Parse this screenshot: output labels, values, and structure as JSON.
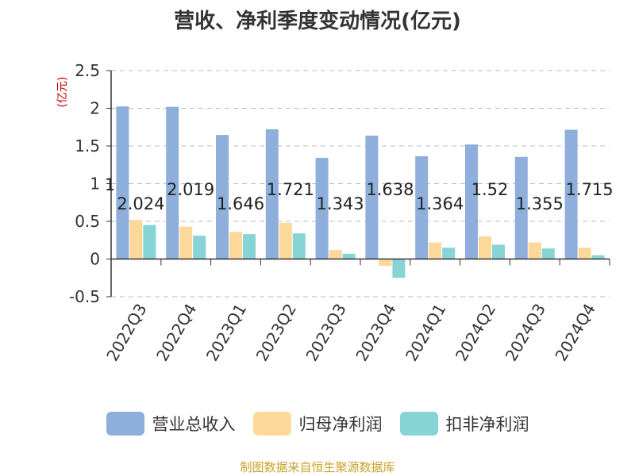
{
  "page": {
    "source_note": "制图数据来自恒生聚源数据库"
  },
  "chart_data": {
    "type": "bar",
    "title": "营收、净利季度变动情况(亿元)",
    "ylabel": "(亿元)",
    "xlabel": "",
    "categories": [
      "2022Q3",
      "2022Q4",
      "2023Q1",
      "2023Q2",
      "2023Q3",
      "2023Q4",
      "2024Q1",
      "2024Q2",
      "2024Q3",
      "2024Q4"
    ],
    "ylim": [
      -0.5,
      2.5
    ],
    "yticks": [
      "2.5",
      "2",
      "1.5",
      "1",
      "0.5",
      "0",
      "-0.5"
    ],
    "ytick_values": [
      2.5,
      2,
      1.5,
      1,
      0.5,
      0,
      -0.5
    ],
    "grid": true,
    "legend_position": "bottom",
    "series": [
      {
        "name": "营业总收入",
        "color": "#8eaedb",
        "values": [
          2.024,
          2.019,
          1.646,
          1.721,
          1.343,
          1.638,
          1.364,
          1.52,
          1.355,
          1.715
        ],
        "labels": [
          "2.024",
          "2.019",
          "1.646",
          "1.721",
          "1.343",
          "1.638",
          "1.364",
          "1.52",
          "1.355",
          "1.715"
        ]
      },
      {
        "name": "归母净利润",
        "color": "#fdd89b",
        "values": [
          0.52,
          0.43,
          0.36,
          0.48,
          0.12,
          -0.09,
          0.22,
          0.3,
          0.22,
          0.15
        ]
      },
      {
        "name": "扣非净利润",
        "color": "#86d4d6",
        "values": [
          0.45,
          0.31,
          0.33,
          0.34,
          0.07,
          -0.25,
          0.15,
          0.19,
          0.14,
          0.05
        ]
      }
    ],
    "annotations": [
      {
        "text": "1",
        "category": "2022Q3"
      }
    ]
  }
}
